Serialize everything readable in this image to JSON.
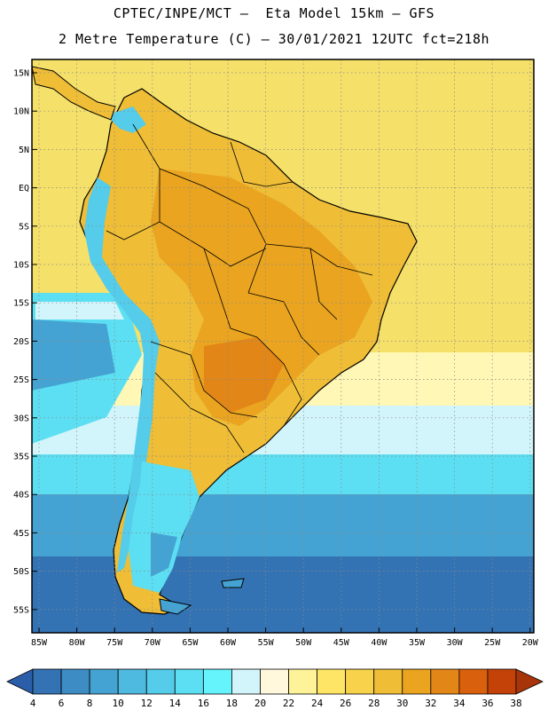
{
  "title_line1": "CPTEC/INPE/MCT –  Eta Model 15km – GFS",
  "title_line2": "2 Metre Temperature (C) – 30/01/2021 12UTC fct=218h",
  "lat_labels": [
    "15N",
    "10N",
    "5N",
    "EQ",
    "5S",
    "10S",
    "15S",
    "20S",
    "25S",
    "30S",
    "35S",
    "40S",
    "45S",
    "50S",
    "55S"
  ],
  "lon_labels": [
    "85W",
    "80W",
    "75W",
    "70W",
    "65W",
    "60W",
    "55W",
    "50W",
    "45W",
    "40W",
    "35W",
    "30W",
    "25W",
    "20W"
  ],
  "colorbar": {
    "values": [
      "4",
      "6",
      "8",
      "10",
      "12",
      "14",
      "16",
      "18",
      "20",
      "22",
      "24",
      "26",
      "28",
      "30",
      "32",
      "34",
      "36",
      "38"
    ],
    "colors": [
      "#2b5ea8",
      "#3373b4",
      "#3d8cc4",
      "#45a3d3",
      "#4fbadf",
      "#55ccea",
      "#5cdff2",
      "#66f4fc",
      "#d2f5fb",
      "#fff8dc",
      "#fff399",
      "#ffe566",
      "#f7d24a",
      "#efbd36",
      "#eaa41f",
      "#e38618",
      "#d9600d",
      "#c44208",
      "#a8350a"
    ]
  },
  "map_colors": {
    "ocean_warm": "#f5e06a",
    "ocean_mid": "#fff7b5",
    "ocean_cool": "#d2f5fb",
    "ocean_cold": "#5cdff2",
    "ocean_colder": "#45a3d3",
    "ocean_coldest": "#3373b4",
    "land_warm": "#efbd36",
    "land_hot": "#eaa41f",
    "land_hotter": "#e38618",
    "andes": "#55ccea",
    "coast": "#000000"
  }
}
